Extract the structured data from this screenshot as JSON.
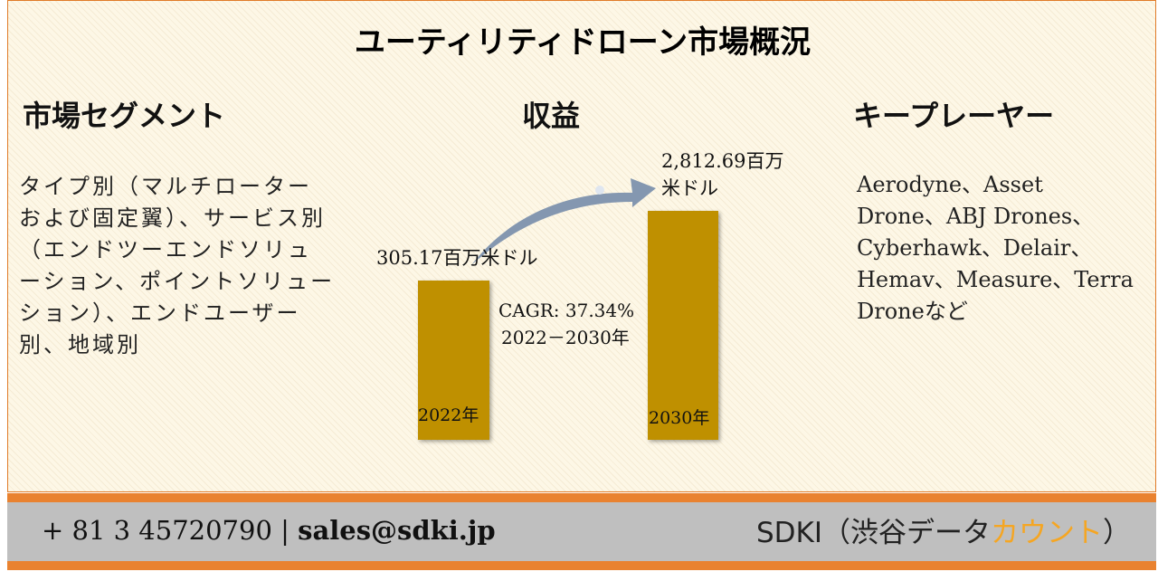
{
  "title": "ユーティリティドローン市場概況",
  "segments": {
    "heading": "市場セグメント",
    "text": "タイプ別（マルチローターおよび固定翼）、サービス別（エンドツーエンドソリューション、ポイントソリューション）、エンドユーザー別、地域別"
  },
  "revenue": {
    "heading": "収益",
    "start_label": "305.17百万米ドル",
    "end_label": "2,812.69百万米ドル",
    "cagr": "CAGR: 37.34%",
    "period": "2022－2030年",
    "start_year": "2022年",
    "end_year": "2030年"
  },
  "players": {
    "heading": "キープレーヤー",
    "text": "Aerodyne、Asset Drone、ABJ Drones、Cyberhawk、Delair、Hemav、Measure、Terra Droneなど"
  },
  "footer": {
    "phone": "+ 81 3 45720790",
    "separator": "|",
    "email": "sales@sdki.jp",
    "brand": "SDKI（渋谷データ",
    "brand_accent": "カウント",
    "brand_end": "）"
  }
}
